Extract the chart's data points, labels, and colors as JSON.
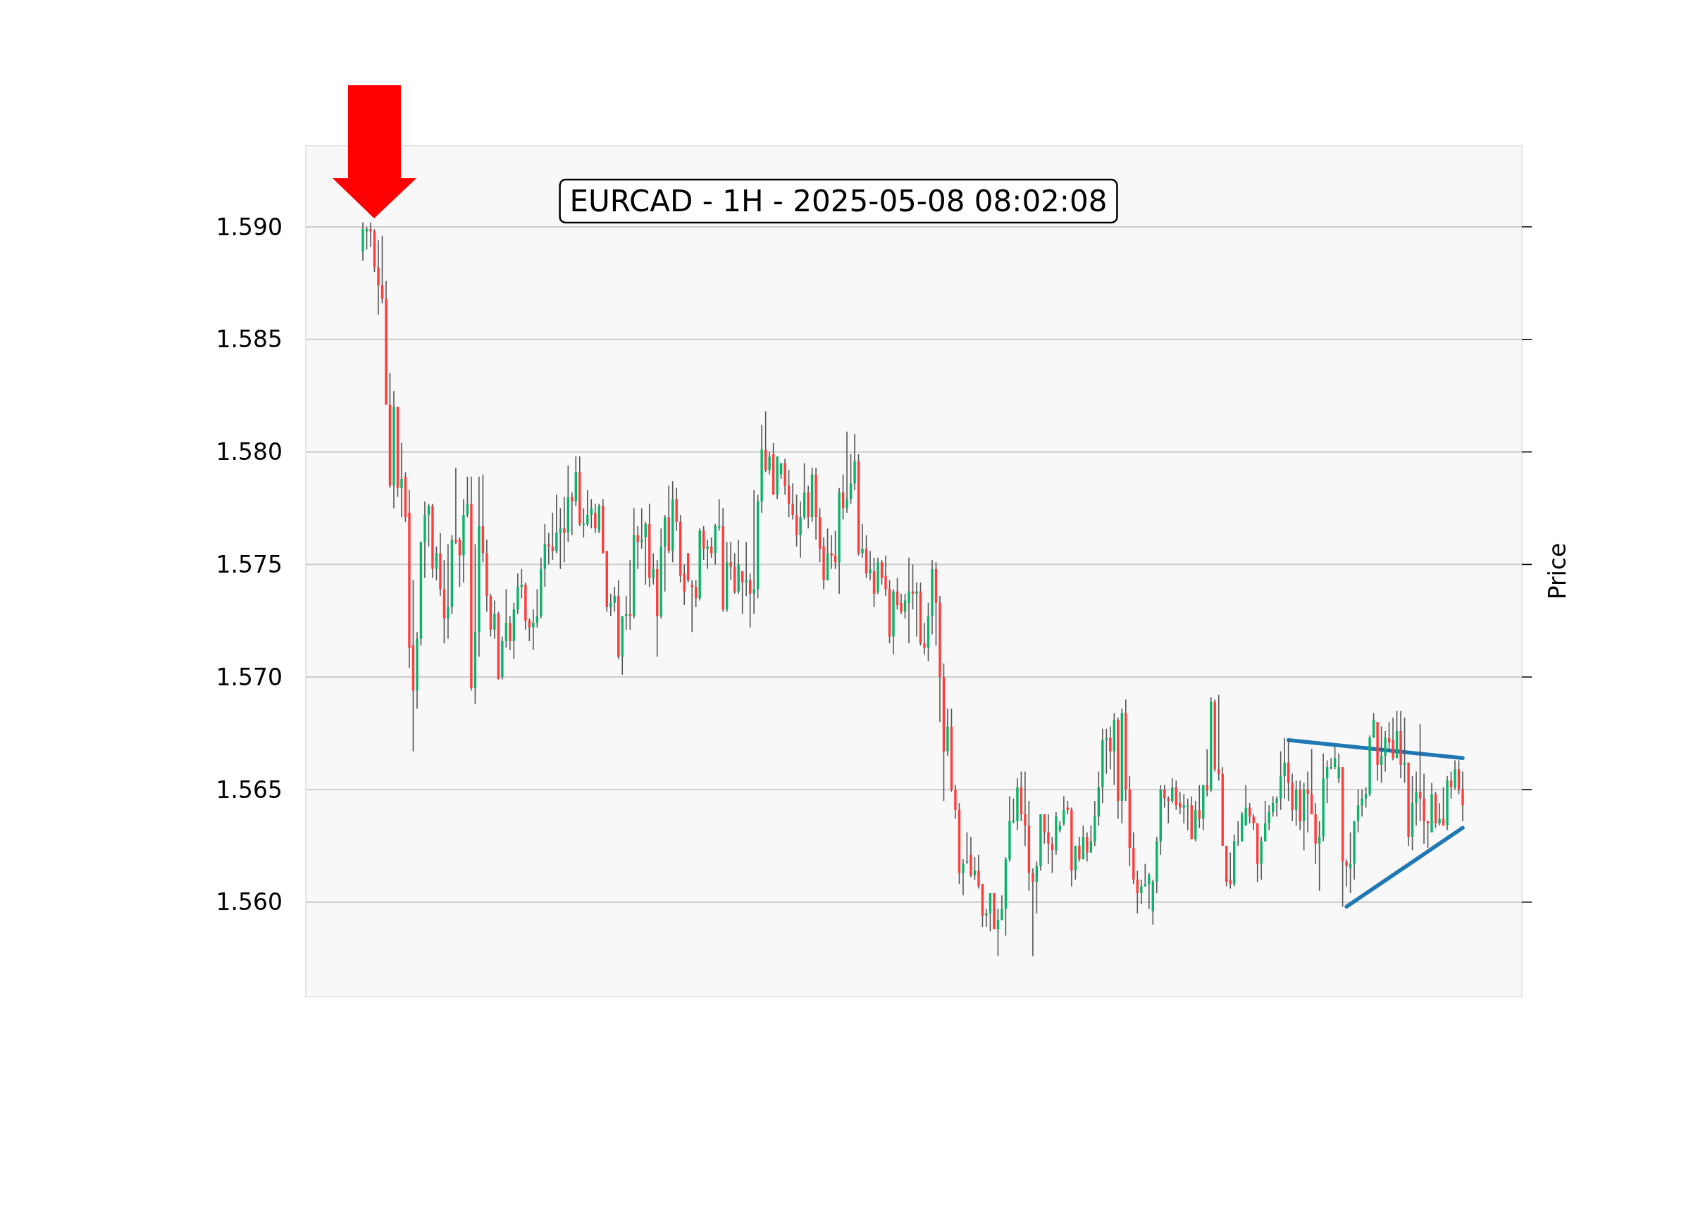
{
  "chart_data": {
    "type": "candlestick",
    "title": "EURCAD - 1H - 2025-05-08 08:02:08",
    "ylabel": "Price",
    "categories": [
      null,
      null,
      null,
      null,
      null,
      null,
      null,
      null,
      null,
      null,
      null,
      null,
      null,
      null,
      null,
      null,
      null,
      null,
      null,
      null,
      null,
      null,
      null,
      null,
      null,
      null,
      null,
      null,
      null,
      null,
      null,
      null,
      null,
      null,
      null,
      null,
      null,
      null,
      null,
      null,
      null,
      null,
      null,
      null,
      null,
      null,
      null,
      null,
      null,
      null,
      null,
      null,
      null,
      null,
      null,
      null,
      null,
      null,
      null,
      null,
      null,
      null,
      null,
      null,
      null,
      null,
      null,
      null,
      null,
      null,
      null,
      null,
      null,
      null,
      null,
      null,
      null,
      null,
      null,
      null,
      null,
      null,
      null,
      null,
      null,
      null,
      null,
      null,
      null,
      null,
      null,
      null,
      null,
      null,
      null,
      null,
      null,
      null,
      null,
      null,
      null,
      null,
      null,
      null,
      null,
      null,
      null,
      null,
      null,
      null,
      null,
      null,
      null,
      null,
      null,
      null,
      null,
      null,
      null,
      null,
      null,
      null,
      null,
      null,
      null,
      null,
      null,
      null,
      null,
      null,
      null,
      null,
      null,
      null,
      null,
      null,
      null,
      null,
      null,
      null,
      null,
      null,
      null,
      null,
      null,
      null,
      null,
      null,
      null,
      null,
      null,
      null,
      null,
      null,
      null,
      null,
      null,
      null,
      null,
      null,
      null,
      null,
      null,
      null,
      null,
      null,
      null,
      null,
      null,
      null,
      null,
      null,
      null,
      null,
      null,
      null,
      null,
      null,
      null,
      null,
      null,
      null,
      null,
      null,
      null,
      null,
      null,
      null,
      null,
      null,
      null,
      null,
      null,
      null,
      null,
      null,
      null,
      null,
      null,
      null,
      null,
      null,
      null,
      null,
      null,
      null,
      null,
      null,
      null,
      null,
      null,
      null,
      null,
      null,
      null,
      null,
      null,
      null,
      null,
      null,
      null,
      null,
      null,
      null,
      null,
      null,
      null,
      null,
      null,
      null,
      null,
      null,
      null,
      null,
      null,
      null,
      null,
      null,
      null,
      null,
      null,
      null,
      null,
      null,
      null,
      null,
      null,
      null,
      null,
      null,
      null,
      null,
      null,
      null,
      null,
      null,
      null,
      null,
      null,
      null,
      null,
      null,
      null,
      null,
      null,
      null,
      null,
      null,
      null,
      null,
      null,
      null,
      null,
      null,
      null,
      null,
      null,
      null,
      null,
      null,
      null,
      null,
      null,
      null,
      null
    ],
    "ohlc": [
      [
        1.5889,
        1.5902,
        1.5885,
        1.5899
      ],
      [
        1.5898,
        1.59,
        1.589,
        1.5899
      ],
      [
        1.5899,
        1.5902,
        1.5891,
        1.5898
      ],
      [
        1.5898,
        1.5899,
        1.588,
        1.5882
      ],
      [
        1.5882,
        1.5894,
        1.5861,
        1.5874
      ],
      [
        1.5874,
        1.5896,
        1.5866,
        1.5868
      ],
      [
        1.5868,
        1.5876,
        1.5821,
        1.5821
      ],
      [
        1.5821,
        1.5835,
        1.5784,
        1.5785
      ],
      [
        1.5785,
        1.5827,
        1.5775,
        1.582
      ],
      [
        1.582,
        1.582,
        1.578,
        1.5784
      ],
      [
        1.5784,
        1.5804,
        1.5771,
        1.5788
      ],
      [
        1.5789,
        1.5791,
        1.5769,
        1.5771
      ],
      [
        1.5773,
        1.5783,
        1.5704,
        1.5713
      ],
      [
        1.5714,
        1.5743,
        1.5667,
        1.5694
      ],
      [
        1.5694,
        1.572,
        1.5686,
        1.5717
      ],
      [
        1.5717,
        1.576,
        1.5714,
        1.576
      ],
      [
        1.576,
        1.5778,
        1.5744,
        1.5772
      ],
      [
        1.5772,
        1.5777,
        1.5758,
        1.5776
      ],
      [
        1.5776,
        1.5777,
        1.5744,
        1.5748
      ],
      [
        1.5748,
        1.5758,
        1.5743,
        1.5755
      ],
      [
        1.5755,
        1.5764,
        1.5736,
        1.5739
      ],
      [
        1.5739,
        1.5752,
        1.5715,
        1.5726
      ],
      [
        1.5726,
        1.5759,
        1.5717,
        1.5731
      ],
      [
        1.5731,
        1.5763,
        1.5728,
        1.5761
      ],
      [
        1.5761,
        1.5793,
        1.5759,
        1.576
      ],
      [
        1.5761,
        1.5762,
        1.574,
        1.5754
      ],
      [
        1.5754,
        1.5779,
        1.5742,
        1.5772
      ],
      [
        1.5772,
        1.5789,
        1.5771,
        1.5777
      ],
      [
        1.5777,
        1.5789,
        1.5694,
        1.5695
      ],
      [
        1.5695,
        1.5759,
        1.5688,
        1.572
      ],
      [
        1.572,
        1.5789,
        1.5709,
        1.5767
      ],
      [
        1.5767,
        1.579,
        1.5751,
        1.5755
      ],
      [
        1.5755,
        1.5761,
        1.5729,
        1.5736
      ],
      [
        1.5736,
        1.5737,
        1.5718,
        1.5721
      ],
      [
        1.5721,
        1.5734,
        1.5717,
        1.5728
      ],
      [
        1.5728,
        1.5729,
        1.5699,
        1.5699
      ],
      [
        1.57,
        1.5718,
        1.5699,
        1.5716
      ],
      [
        1.5716,
        1.5739,
        1.5713,
        1.5724
      ],
      [
        1.5724,
        1.5727,
        1.5712,
        1.5716
      ],
      [
        1.5716,
        1.5733,
        1.5708,
        1.573
      ],
      [
        1.573,
        1.5746,
        1.5728,
        1.574
      ],
      [
        1.574,
        1.5748,
        1.5735,
        1.5741
      ],
      [
        1.5741,
        1.5742,
        1.5721,
        1.5725
      ],
      [
        1.5725,
        1.5726,
        1.5716,
        1.5722
      ],
      [
        1.5722,
        1.573,
        1.5712,
        1.5724
      ],
      [
        1.5724,
        1.5739,
        1.5722,
        1.5727
      ],
      [
        1.5727,
        1.5753,
        1.5726,
        1.5748
      ],
      [
        1.5748,
        1.5768,
        1.574,
        1.5759
      ],
      [
        1.5759,
        1.5764,
        1.575,
        1.5758
      ],
      [
        1.5758,
        1.5773,
        1.5752,
        1.5756
      ],
      [
        1.5756,
        1.5781,
        1.5755,
        1.5764
      ],
      [
        1.5764,
        1.5775,
        1.5748,
        1.5766
      ],
      [
        1.5766,
        1.578,
        1.5751,
        1.5764
      ],
      [
        1.5764,
        1.5794,
        1.576,
        1.578
      ],
      [
        1.578,
        1.5782,
        1.5763,
        1.5778
      ],
      [
        1.5778,
        1.5798,
        1.5776,
        1.5791
      ],
      [
        1.5791,
        1.5798,
        1.5767,
        1.5768
      ],
      [
        1.5768,
        1.5775,
        1.5762,
        1.5768
      ],
      [
        1.5768,
        1.5783,
        1.5767,
        1.5772
      ],
      [
        1.5772,
        1.5779,
        1.5766,
        1.5775
      ],
      [
        1.5773,
        1.5777,
        1.5764,
        1.5766
      ],
      [
        1.5765,
        1.5777,
        1.5764,
        1.5776
      ],
      [
        1.5776,
        1.5779,
        1.5755,
        1.5755
      ],
      [
        1.5756,
        1.5756,
        1.5729,
        1.5731
      ],
      [
        1.5731,
        1.5737,
        1.5727,
        1.5733
      ],
      [
        1.5733,
        1.574,
        1.5729,
        1.5736
      ],
      [
        1.5736,
        1.5743,
        1.5708,
        1.5709
      ],
      [
        1.5709,
        1.5727,
        1.5701,
        1.5727
      ],
      [
        1.5727,
        1.5736,
        1.5721,
        1.5728
      ],
      [
        1.5728,
        1.5752,
        1.5721,
        1.5727
      ],
      [
        1.5727,
        1.5775,
        1.5726,
        1.5763
      ],
      [
        1.5763,
        1.5767,
        1.5748,
        1.576
      ],
      [
        1.576,
        1.5775,
        1.5757,
        1.5761
      ],
      [
        1.5762,
        1.5769,
        1.5741,
        1.5768
      ],
      [
        1.5768,
        1.5777,
        1.574,
        1.5744
      ],
      [
        1.5744,
        1.5755,
        1.5741,
        1.5748
      ],
      [
        1.5748,
        1.5752,
        1.5709,
        1.5727
      ],
      [
        1.5727,
        1.5766,
        1.5726,
        1.5758
      ],
      [
        1.5758,
        1.5772,
        1.5738,
        1.5771
      ],
      [
        1.5771,
        1.5785,
        1.5755,
        1.5756
      ],
      [
        1.5756,
        1.5787,
        1.5751,
        1.5779
      ],
      [
        1.5779,
        1.5784,
        1.5765,
        1.5769
      ],
      [
        1.5769,
        1.5772,
        1.5742,
        1.5745
      ],
      [
        1.5746,
        1.575,
        1.5732,
        1.5738
      ],
      [
        1.5755,
        1.5755,
        1.5742,
        1.5743
      ],
      [
        1.5741,
        1.5743,
        1.572,
        1.574
      ],
      [
        1.574,
        1.5743,
        1.5731,
        1.5735
      ],
      [
        1.5735,
        1.5766,
        1.5734,
        1.5765
      ],
      [
        1.5765,
        1.5767,
        1.5752,
        1.5757
      ],
      [
        1.5757,
        1.5761,
        1.5748,
        1.5758
      ],
      [
        1.5758,
        1.5762,
        1.5753,
        1.5755
      ],
      [
        1.5755,
        1.5768,
        1.575,
        1.5767
      ],
      [
        1.5767,
        1.5779,
        1.5765,
        1.5767
      ],
      [
        1.5767,
        1.5775,
        1.5729,
        1.573
      ],
      [
        1.573,
        1.576,
        1.5729,
        1.5751
      ],
      [
        1.5751,
        1.576,
        1.5743,
        1.5749
      ],
      [
        1.5749,
        1.5755,
        1.5737,
        1.5738
      ],
      [
        1.5738,
        1.5761,
        1.5737,
        1.575
      ],
      [
        1.5747,
        1.5747,
        1.5728,
        1.5742
      ],
      [
        1.5742,
        1.576,
        1.5736,
        1.5743
      ],
      [
        1.5743,
        1.5746,
        1.5722,
        1.5737
      ],
      [
        1.5737,
        1.5783,
        1.5728,
        1.5739
      ],
      [
        1.5739,
        1.5781,
        1.5735,
        1.5778
      ],
      [
        1.5778,
        1.5812,
        1.5773,
        1.5801
      ],
      [
        1.5801,
        1.5818,
        1.5791,
        1.5792
      ],
      [
        1.5792,
        1.58,
        1.579,
        1.5798
      ],
      [
        1.5799,
        1.5804,
        1.5781,
        1.5781
      ],
      [
        1.5781,
        1.5798,
        1.5779,
        1.5798
      ],
      [
        1.579,
        1.5795,
        1.5788,
        1.5795
      ],
      [
        1.5795,
        1.5797,
        1.5781,
        1.5785
      ],
      [
        1.5785,
        1.5792,
        1.5771,
        1.5777
      ],
      [
        1.5777,
        1.5786,
        1.577,
        1.5772
      ],
      [
        1.5772,
        1.5781,
        1.5758,
        1.5763
      ],
      [
        1.5763,
        1.5778,
        1.5753,
        1.5771
      ],
      [
        1.5771,
        1.5795,
        1.577,
        1.5782
      ],
      [
        1.5782,
        1.5785,
        1.5766,
        1.5771
      ],
      [
        1.5771,
        1.5793,
        1.5769,
        1.579
      ],
      [
        1.579,
        1.5793,
        1.5761,
        1.5771
      ],
      [
        1.5771,
        1.5775,
        1.5751,
        1.5757
      ],
      [
        1.5758,
        1.5762,
        1.5739,
        1.5743
      ],
      [
        1.5743,
        1.5766,
        1.5743,
        1.5755
      ],
      [
        1.5755,
        1.5763,
        1.5748,
        1.5754
      ],
      [
        1.5754,
        1.5765,
        1.5748,
        1.5751
      ],
      [
        1.5751,
        1.5784,
        1.5737,
        1.5782
      ],
      [
        1.5782,
        1.579,
        1.577,
        1.5775
      ],
      [
        1.5775,
        1.5809,
        1.5773,
        1.5779
      ],
      [
        1.5779,
        1.5799,
        1.5777,
        1.5786
      ],
      [
        1.5786,
        1.5808,
        1.5783,
        1.5796
      ],
      [
        1.5796,
        1.5799,
        1.5754,
        1.5755
      ],
      [
        1.5755,
        1.5768,
        1.5753,
        1.5757
      ],
      [
        1.5757,
        1.5763,
        1.5744,
        1.5746
      ],
      [
        1.5746,
        1.5756,
        1.5743,
        1.5748
      ],
      [
        1.5747,
        1.5753,
        1.5731,
        1.5737
      ],
      [
        1.5738,
        1.5753,
        1.5737,
        1.5751
      ],
      [
        1.5751,
        1.5752,
        1.5741,
        1.5744
      ],
      [
        1.5745,
        1.5754,
        1.5736,
        1.5739
      ],
      [
        1.5739,
        1.5743,
        1.5715,
        1.5718
      ],
      [
        1.5718,
        1.5739,
        1.571,
        1.5738
      ],
      [
        1.5738,
        1.5744,
        1.573,
        1.5732
      ],
      [
        1.5733,
        1.5737,
        1.5728,
        1.5729
      ],
      [
        1.5729,
        1.5737,
        1.5726,
        1.5734
      ],
      [
        1.5733,
        1.5753,
        1.5715,
        1.5738
      ],
      [
        1.5738,
        1.575,
        1.573,
        1.5737
      ],
      [
        1.5737,
        1.5742,
        1.5718,
        1.5738
      ],
      [
        1.5738,
        1.5742,
        1.5714,
        1.5715
      ],
      [
        1.5715,
        1.5724,
        1.571,
        1.5713
      ],
      [
        1.5713,
        1.5733,
        1.5707,
        1.5727
      ],
      [
        1.5727,
        1.5752,
        1.5719,
        1.5748
      ],
      [
        1.5748,
        1.5751,
        1.5714,
        1.5733
      ],
      [
        1.5733,
        1.5736,
        1.568,
        1.57
      ],
      [
        1.57,
        1.5706,
        1.5645,
        1.5667
      ],
      [
        1.5667,
        1.5686,
        1.5665,
        1.5678
      ],
      [
        1.5678,
        1.5686,
        1.5649,
        1.565
      ],
      [
        1.565,
        1.5652,
        1.5637,
        1.5641
      ],
      [
        1.5641,
        1.5644,
        1.5608,
        1.5613
      ],
      [
        1.5613,
        1.5619,
        1.5603,
        1.5617
      ],
      [
        1.5618,
        1.5631,
        1.5617,
        1.5618
      ],
      [
        1.5621,
        1.5629,
        1.5611,
        1.5612
      ],
      [
        1.5612,
        1.562,
        1.561,
        1.5614
      ],
      [
        1.5614,
        1.5621,
        1.5606,
        1.5607
      ],
      [
        1.5608,
        1.5608,
        1.5589,
        1.5594
      ],
      [
        1.5594,
        1.5597,
        1.5589,
        1.5595
      ],
      [
        1.5595,
        1.5604,
        1.5587,
        1.5604
      ],
      [
        1.5604,
        1.5604,
        1.5588,
        1.5588
      ],
      [
        1.5588,
        1.5597,
        1.5576,
        1.5592
      ],
      [
        1.5592,
        1.5603,
        1.5592,
        1.5597
      ],
      [
        1.5597,
        1.562,
        1.5585,
        1.5619
      ],
      [
        1.5619,
        1.5647,
        1.5618,
        1.5636
      ],
      [
        1.5636,
        1.5646,
        1.5635,
        1.5636
      ],
      [
        1.5636,
        1.5655,
        1.5632,
        1.5651
      ],
      [
        1.5651,
        1.5658,
        1.5636,
        1.5639
      ],
      [
        1.5639,
        1.5658,
        1.5625,
        1.5634
      ],
      [
        1.5634,
        1.5645,
        1.5605,
        1.5613
      ],
      [
        1.5613,
        1.5615,
        1.5576,
        1.5609
      ],
      [
        1.5609,
        1.5618,
        1.5595,
        1.5616
      ],
      [
        1.5616,
        1.5639,
        1.5614,
        1.5639
      ],
      [
        1.5639,
        1.5639,
        1.5626,
        1.5631
      ],
      [
        1.5631,
        1.5639,
        1.5617,
        1.5626
      ],
      [
        1.5626,
        1.5629,
        1.5613,
        1.5623
      ],
      [
        1.5623,
        1.564,
        1.5621,
        1.5638
      ],
      [
        1.5632,
        1.5636,
        1.5631,
        1.5634
      ],
      [
        1.5635,
        1.5647,
        1.5634,
        1.5641
      ],
      [
        1.5642,
        1.5645,
        1.5639,
        1.5641
      ],
      [
        1.5641,
        1.5642,
        1.5607,
        1.5614
      ],
      [
        1.5614,
        1.5625,
        1.561,
        1.5625
      ],
      [
        1.5625,
        1.5629,
        1.5618,
        1.5619
      ],
      [
        1.5619,
        1.5634,
        1.5619,
        1.5629
      ],
      [
        1.5629,
        1.5631,
        1.5618,
        1.5622
      ],
      [
        1.5622,
        1.5634,
        1.5622,
        1.5627
      ],
      [
        1.5627,
        1.5645,
        1.5625,
        1.5638
      ],
      [
        1.5638,
        1.5658,
        1.5634,
        1.5651
      ],
      [
        1.5651,
        1.5677,
        1.5644,
        1.5672
      ],
      [
        1.5672,
        1.5677,
        1.5657,
        1.5673
      ],
      [
        1.5673,
        1.5678,
        1.5659,
        1.5667
      ],
      [
        1.5667,
        1.5684,
        1.5652,
        1.5681
      ],
      [
        1.5681,
        1.5682,
        1.5637,
        1.5645
      ],
      [
        1.5645,
        1.5686,
        1.5635,
        1.5684
      ],
      [
        1.5684,
        1.569,
        1.5645,
        1.565
      ],
      [
        1.565,
        1.5656,
        1.5616,
        1.5624
      ],
      [
        1.5624,
        1.5631,
        1.5608,
        1.561
      ],
      [
        1.561,
        1.5614,
        1.5595,
        1.5604
      ],
      [
        1.5604,
        1.561,
        1.5599,
        1.5607
      ],
      [
        1.5607,
        1.5617,
        1.5607,
        1.5608
      ],
      [
        1.5608,
        1.5613,
        1.5597,
        1.5612
      ],
      [
        1.5596,
        1.561,
        1.559,
        1.5609
      ],
      [
        1.5609,
        1.5629,
        1.5604,
        1.5627
      ],
      [
        1.5627,
        1.5652,
        1.5621,
        1.565
      ],
      [
        1.565,
        1.5652,
        1.5642,
        1.5646
      ],
      [
        1.5646,
        1.5647,
        1.5635,
        1.5645
      ],
      [
        1.5645,
        1.5655,
        1.5644,
        1.5651
      ],
      [
        1.5651,
        1.5654,
        1.5641,
        1.5643
      ],
      [
        1.5644,
        1.5649,
        1.5639,
        1.5642
      ],
      [
        1.5642,
        1.5648,
        1.5635,
        1.5643
      ],
      [
        1.5643,
        1.5646,
        1.5632,
        1.5643
      ],
      [
        1.5643,
        1.5647,
        1.5628,
        1.5628
      ],
      [
        1.5628,
        1.5645,
        1.5627,
        1.5641
      ],
      [
        1.5641,
        1.5652,
        1.5633,
        1.5637
      ],
      [
        1.5637,
        1.5652,
        1.5632,
        1.5652
      ],
      [
        1.5652,
        1.5668,
        1.5647,
        1.565
      ],
      [
        1.565,
        1.5691,
        1.5649,
        1.5689
      ],
      [
        1.5689,
        1.569,
        1.5658,
        1.5659
      ],
      [
        1.5659,
        1.5692,
        1.5654,
        1.5657
      ],
      [
        1.5657,
        1.566,
        1.5625,
        1.5625
      ],
      [
        1.5625,
        1.5625,
        1.5607,
        1.5609
      ],
      [
        1.561,
        1.5622,
        1.5606,
        1.5608
      ],
      [
        1.5608,
        1.563,
        1.5607,
        1.5627
      ],
      [
        1.5627,
        1.5636,
        1.5625,
        1.5627
      ],
      [
        1.5627,
        1.564,
        1.5627,
        1.5639
      ],
      [
        1.5634,
        1.5652,
        1.5634,
        1.5642
      ],
      [
        1.5642,
        1.5644,
        1.5635,
        1.5638
      ],
      [
        1.5638,
        1.5639,
        1.5632,
        1.5635
      ],
      [
        1.5635,
        1.5635,
        1.5609,
        1.5617
      ],
      [
        1.5617,
        1.5629,
        1.561,
        1.5627
      ],
      [
        1.5627,
        1.5645,
        1.5627,
        1.5635
      ],
      [
        1.5635,
        1.5643,
        1.5632,
        1.564
      ],
      [
        1.564,
        1.5647,
        1.5638,
        1.5644
      ],
      [
        1.5644,
        1.5647,
        1.5638,
        1.5646
      ],
      [
        1.5646,
        1.5667,
        1.5641,
        1.5656
      ],
      [
        1.5656,
        1.5673,
        1.5646,
        1.5662
      ],
      [
        1.5662,
        1.5672,
        1.5645,
        1.5653
      ],
      [
        1.5653,
        1.5657,
        1.5636,
        1.5641
      ],
      [
        1.5641,
        1.5654,
        1.5634,
        1.565
      ],
      [
        1.565,
        1.5654,
        1.5632,
        1.5636
      ],
      [
        1.5636,
        1.5653,
        1.5623,
        1.565
      ],
      [
        1.565,
        1.5658,
        1.5631,
        1.5648
      ],
      [
        1.5648,
        1.5668,
        1.5639,
        1.5639
      ],
      [
        1.5639,
        1.5644,
        1.5617,
        1.5626
      ],
      [
        1.5626,
        1.5636,
        1.5605,
        1.5629
      ],
      [
        1.5629,
        1.5666,
        1.5627,
        1.5655
      ],
      [
        1.5655,
        1.5663,
        1.5644,
        1.566
      ],
      [
        1.566,
        1.5664,
        1.5659,
        1.566
      ],
      [
        1.566,
        1.5669,
        1.5659,
        1.5664
      ],
      [
        1.5655,
        1.5666,
        1.5653,
        1.566
      ],
      [
        1.566,
        1.566,
        1.5598,
        1.5618
      ],
      [
        1.5618,
        1.5619,
        1.5607,
        1.5616
      ],
      [
        1.5615,
        1.5631,
        1.5604,
        1.5617
      ],
      [
        1.5617,
        1.5636,
        1.561,
        1.5636
      ],
      [
        1.5636,
        1.565,
        1.5631,
        1.5643
      ],
      [
        1.5643,
        1.565,
        1.5638,
        1.5646
      ],
      [
        1.5646,
        1.5651,
        1.5642,
        1.5648
      ],
      [
        1.5648,
        1.5674,
        1.5647,
        1.5673
      ],
      [
        1.5673,
        1.5684,
        1.5673,
        1.5681
      ],
      [
        1.568,
        1.568,
        1.5654,
        1.5661
      ],
      [
        1.5661,
        1.5678,
        1.5653,
        1.5665
      ],
      [
        1.5665,
        1.5676,
        1.5658,
        1.5673
      ],
      [
        1.5673,
        1.568,
        1.5667,
        1.5671
      ],
      [
        1.5672,
        1.5682,
        1.5663,
        1.5664
      ],
      [
        1.5664,
        1.5685,
        1.5664,
        1.5676
      ],
      [
        1.5676,
        1.5685,
        1.5655,
        1.5661
      ],
      [
        1.5661,
        1.5682,
        1.5653,
        1.5662
      ],
      [
        1.5662,
        1.5662,
        1.5625,
        1.5629
      ],
      [
        1.5629,
        1.5656,
        1.5623,
        1.5644
      ],
      [
        1.5644,
        1.5658,
        1.5634,
        1.5649
      ],
      [
        1.5649,
        1.5679,
        1.5636,
        1.5646
      ],
      [
        1.5646,
        1.5657,
        1.5626,
        1.5636
      ],
      [
        1.5636,
        1.5636,
        1.5624,
        1.5635
      ],
      [
        1.5631,
        1.5653,
        1.5631,
        1.5648
      ],
      [
        1.5648,
        1.5649,
        1.5633,
        1.5635
      ],
      [
        1.5635,
        1.5644,
        1.5634,
        1.5637
      ],
      [
        1.5637,
        1.5651,
        1.5634,
        1.5634
      ],
      [
        1.5634,
        1.5656,
        1.5632,
        1.5654
      ],
      [
        1.5654,
        1.5658,
        1.5646,
        1.5651
      ],
      [
        1.5651,
        1.5663,
        1.565,
        1.5659
      ],
      [
        1.5659,
        1.5663,
        1.5648,
        1.565
      ],
      [
        1.565,
        1.5658,
        1.5636,
        1.5643
      ]
    ],
    "series": [
      {
        "type": "line",
        "color": "#1f77b4",
        "values": [
          null,
          null,
          null,
          null,
          null,
          null,
          null,
          null,
          null,
          null,
          null,
          null,
          null,
          null,
          null,
          null,
          null,
          null,
          null,
          null,
          null,
          null,
          null,
          null,
          null,
          null,
          null,
          null,
          null,
          null,
          null,
          null,
          null,
          null,
          null,
          null,
          null,
          null,
          null,
          null,
          null,
          null,
          null,
          null,
          null,
          null,
          null,
          null,
          null,
          null,
          null,
          null,
          null,
          null,
          null,
          null,
          null,
          null,
          null,
          null,
          null,
          null,
          null,
          null,
          null,
          null,
          null,
          null,
          null,
          null,
          null,
          null,
          null,
          null,
          null,
          null,
          null,
          null,
          null,
          null,
          null,
          null,
          null,
          null,
          null,
          null,
          null,
          null,
          null,
          null,
          null,
          null,
          null,
          null,
          null,
          null,
          null,
          null,
          null,
          null,
          null,
          null,
          null,
          null,
          null,
          null,
          null,
          null,
          null,
          null,
          null,
          null,
          null,
          null,
          null,
          null,
          null,
          null,
          null,
          null,
          null,
          null,
          null,
          null,
          null,
          null,
          null,
          null,
          null,
          null,
          null,
          null,
          null,
          null,
          null,
          null,
          null,
          null,
          null,
          null,
          null,
          null,
          null,
          null,
          null,
          null,
          null,
          null,
          null,
          null,
          null,
          null,
          null,
          null,
          null,
          null,
          null,
          null,
          null,
          null,
          null,
          null,
          null,
          null,
          null,
          null,
          null,
          null,
          null,
          null,
          null,
          null,
          null,
          null,
          null,
          null,
          null,
          null,
          null,
          null,
          null,
          null,
          null,
          null,
          null,
          null,
          null,
          null,
          null,
          null,
          null,
          null,
          null,
          null,
          null,
          null,
          null,
          null,
          null,
          null,
          null,
          null,
          null,
          null,
          null,
          null,
          null,
          null,
          null,
          null,
          null,
          null,
          null,
          null,
          null,
          null,
          null,
          null,
          null,
          null,
          null,
          null,
          null,
          null,
          null,
          null,
          null,
          null,
          null,
          null,
          null,
          null,
          null,
          null,
          null,
          null,
          null,
          null,
          null,
          1.5672,
          null,
          null,
          null,
          null,
          null,
          null,
          null,
          null,
          null,
          null,
          null,
          null,
          null,
          null,
          null,
          null,
          null,
          null,
          null,
          null,
          null,
          null,
          null,
          null,
          null,
          null,
          null,
          null,
          null,
          null,
          null,
          null,
          null,
          null,
          null,
          null,
          null,
          null,
          null,
          null,
          null,
          null,
          null,
          null,
          1.5664
        ]
      },
      {
        "type": "line",
        "color": "#1f77b4",
        "values": [
          null,
          null,
          null,
          null,
          null,
          null,
          null,
          null,
          null,
          null,
          null,
          null,
          null,
          null,
          null,
          null,
          null,
          null,
          null,
          null,
          null,
          null,
          null,
          null,
          null,
          null,
          null,
          null,
          null,
          null,
          null,
          null,
          null,
          null,
          null,
          null,
          null,
          null,
          null,
          null,
          null,
          null,
          null,
          null,
          null,
          null,
          null,
          null,
          null,
          null,
          null,
          null,
          null,
          null,
          null,
          null,
          null,
          null,
          null,
          null,
          null,
          null,
          null,
          null,
          null,
          null,
          null,
          null,
          null,
          null,
          null,
          null,
          null,
          null,
          null,
          null,
          null,
          null,
          null,
          null,
          null,
          null,
          null,
          null,
          null,
          null,
          null,
          null,
          null,
          null,
          null,
          null,
          null,
          null,
          null,
          null,
          null,
          null,
          null,
          null,
          null,
          null,
          null,
          null,
          null,
          null,
          null,
          null,
          null,
          null,
          null,
          null,
          null,
          null,
          null,
          null,
          null,
          null,
          null,
          null,
          null,
          null,
          null,
          null,
          null,
          null,
          null,
          null,
          null,
          null,
          null,
          null,
          null,
          null,
          null,
          null,
          null,
          null,
          null,
          null,
          null,
          null,
          null,
          null,
          null,
          null,
          null,
          null,
          null,
          null,
          null,
          null,
          null,
          null,
          null,
          null,
          null,
          null,
          null,
          null,
          null,
          null,
          null,
          null,
          null,
          null,
          null,
          null,
          null,
          null,
          null,
          null,
          null,
          null,
          null,
          null,
          null,
          null,
          null,
          null,
          null,
          null,
          null,
          null,
          null,
          null,
          null,
          null,
          null,
          null,
          null,
          null,
          null,
          null,
          null,
          null,
          null,
          null,
          null,
          null,
          null,
          null,
          null,
          null,
          null,
          null,
          null,
          null,
          null,
          null,
          null,
          null,
          null,
          null,
          null,
          null,
          null,
          null,
          null,
          null,
          null,
          null,
          null,
          null,
          null,
          null,
          null,
          null,
          null,
          null,
          null,
          null,
          null,
          null,
          null,
          null,
          null,
          null,
          null,
          null,
          null,
          null,
          null,
          null,
          null,
          null,
          null,
          null,
          null,
          null,
          null,
          null,
          null,
          null,
          1.5598,
          null,
          null,
          null,
          null,
          null,
          null,
          null,
          null,
          null,
          null,
          null,
          null,
          null,
          null,
          null,
          null,
          null,
          null,
          null,
          null,
          null,
          null,
          null,
          null,
          null,
          null,
          null,
          null,
          null,
          1.5633
        ]
      }
    ],
    "ylim": [
      1.5558,
      1.5936
    ],
    "yticks": [
      {
        "value": 1.56,
        "label": "1.560"
      },
      1.565,
      {
        "value": 1.57,
        "label": "1.570"
      },
      1.575,
      {
        "value": 1.58,
        "label": "1.580"
      },
      1.585,
      {
        "value": 1.59,
        "label": "1.590"
      }
    ],
    "grid": "y",
    "tick_labels": "y"
  }
}
